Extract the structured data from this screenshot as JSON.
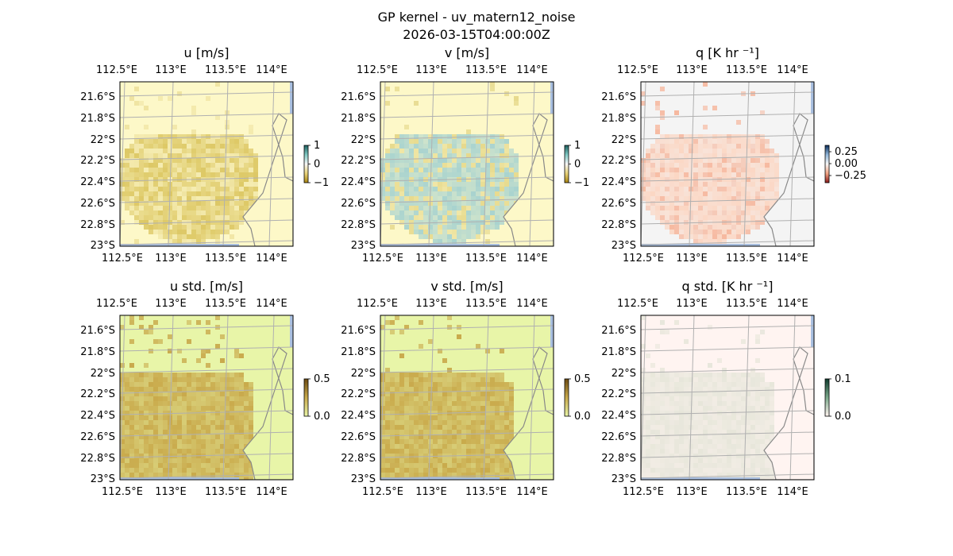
{
  "figure": {
    "suptitle_line1": "GP kernel - uv_matern12_noise",
    "suptitle_line2": "2026-03-15T04:00:00Z"
  },
  "colors": {
    "land": "#f5f5dc",
    "ocean": "#a9bfe0",
    "grid": "#b0b0b0",
    "coast": "#888888"
  },
  "chart_data": [
    {
      "type": "heatmap",
      "title": "u [m/s]",
      "x_ticks": [
        "112.5°E",
        "113°E",
        "113.5°E",
        "114°E"
      ],
      "y_ticks": [
        "21.6°S",
        "21.8°S",
        "22°S",
        "22.2°S",
        "22.4°S",
        "22.6°S",
        "22.8°S",
        "23°S"
      ],
      "xlim": [
        112.47,
        114.22
      ],
      "ylim": [
        -23.02,
        -21.48
      ],
      "colorbar": {
        "ticks": [
          "1",
          "0",
          "−1"
        ],
        "range": [
          -1,
          1
        ],
        "colors": [
          "#1b5e5e",
          "#7fc8c2",
          "#f7f7f7",
          "#e8d27a",
          "#a8840f"
        ]
      },
      "field": {
        "background": "#fdf8c8",
        "blob": "#ddc865",
        "noise": "#efe3a0"
      },
      "grid": true
    },
    {
      "type": "heatmap",
      "title": "v [m/s]",
      "x_ticks": [
        "112.5°E",
        "113°E",
        "113.5°E",
        "114°E"
      ],
      "y_ticks": [
        "21.6°S",
        "21.8°S",
        "22°S",
        "22.2°S",
        "22.4°S",
        "22.6°S",
        "22.8°S",
        "23°S"
      ],
      "xlim": [
        112.47,
        114.22
      ],
      "ylim": [
        -23.02,
        -21.48
      ],
      "colorbar": {
        "ticks": [
          "1",
          "0",
          "−1"
        ],
        "range": [
          -1,
          1
        ],
        "colors": [
          "#1b5e5e",
          "#7fc8c2",
          "#f7f7f7",
          "#e8d27a",
          "#a8840f"
        ]
      },
      "field": {
        "background": "#fdf8c8",
        "blob": "#a9d3cf",
        "noise": "#e6d98c"
      },
      "grid": true
    },
    {
      "type": "heatmap",
      "title": "q [K hr ⁻¹]",
      "x_ticks": [
        "112.5°E",
        "113°E",
        "113.5°E",
        "114°E"
      ],
      "y_ticks": [
        "21.6°S",
        "21.8°S",
        "22°S",
        "22.2°S",
        "22.4°S",
        "22.6°S",
        "22.8°S",
        "23°S"
      ],
      "xlim": [
        112.47,
        114.22
      ],
      "ylim": [
        -23.02,
        -21.48
      ],
      "colorbar": {
        "ticks": [
          "0.25",
          "0.00",
          "−0.25"
        ],
        "range": [
          -0.35,
          0.35
        ],
        "colors": [
          "#0b2e5c",
          "#8fb5d8",
          "#f7f7f7",
          "#f2a584",
          "#8b1a1a"
        ]
      },
      "field": {
        "background": "#f4f4f4",
        "blob": "#fbd6c3",
        "noise": "#f6b9a0"
      },
      "grid": true
    },
    {
      "type": "heatmap",
      "title": "u std. [m/s]",
      "x_ticks": [
        "112.5°E",
        "113°E",
        "113.5°E",
        "114°E"
      ],
      "y_ticks": [
        "21.6°S",
        "21.8°S",
        "22°S",
        "22.2°S",
        "22.4°S",
        "22.6°S",
        "22.8°S",
        "23°S"
      ],
      "xlim": [
        112.47,
        114.22
      ],
      "ylim": [
        -23.02,
        -21.48
      ],
      "colorbar": {
        "ticks": [
          "0.5",
          "0.0"
        ],
        "range": [
          0,
          0.5
        ],
        "colors": [
          "#6b4a12",
          "#c9aa4c",
          "#e8f5a8"
        ]
      },
      "field": {
        "background": "#e8f5a8",
        "blob": "#c9aa4c",
        "noise": "#d4b85a"
      },
      "grid": true
    },
    {
      "type": "heatmap",
      "title": "v std. [m/s]",
      "x_ticks": [
        "112.5°E",
        "113°E",
        "113.5°E",
        "114°E"
      ],
      "y_ticks": [
        "21.6°S",
        "21.8°S",
        "22°S",
        "22.2°S",
        "22.4°S",
        "22.6°S",
        "22.8°S",
        "23°S"
      ],
      "xlim": [
        112.47,
        114.22
      ],
      "ylim": [
        -23.02,
        -21.48
      ],
      "colorbar": {
        "ticks": [
          "0.5",
          "0.0"
        ],
        "range": [
          0,
          0.5
        ],
        "colors": [
          "#6b4a12",
          "#c9aa4c",
          "#e8f5a8"
        ]
      },
      "field": {
        "background": "#e8f5a8",
        "blob": "#c9aa4c",
        "noise": "#d4b85a"
      },
      "grid": true
    },
    {
      "type": "heatmap",
      "title": "q std. [K hr ⁻¹]",
      "x_ticks": [
        "112.5°E",
        "113°E",
        "113.5°E",
        "114°E"
      ],
      "y_ticks": [
        "21.6°S",
        "21.8°S",
        "22°S",
        "22.2°S",
        "22.4°S",
        "22.6°S",
        "22.8°S",
        "23°S"
      ],
      "xlim": [
        112.47,
        114.22
      ],
      "ylim": [
        -23.02,
        -21.48
      ],
      "colorbar": {
        "ticks": [
          "0.1",
          "0.0"
        ],
        "range": [
          0,
          0.1
        ],
        "colors": [
          "#0f3b2e",
          "#7aa88a",
          "#fff4f0"
        ]
      },
      "field": {
        "background": "#fff4f1",
        "blob": "#e7e6da",
        "noise": "#dfe3d2"
      },
      "grid": true
    }
  ]
}
